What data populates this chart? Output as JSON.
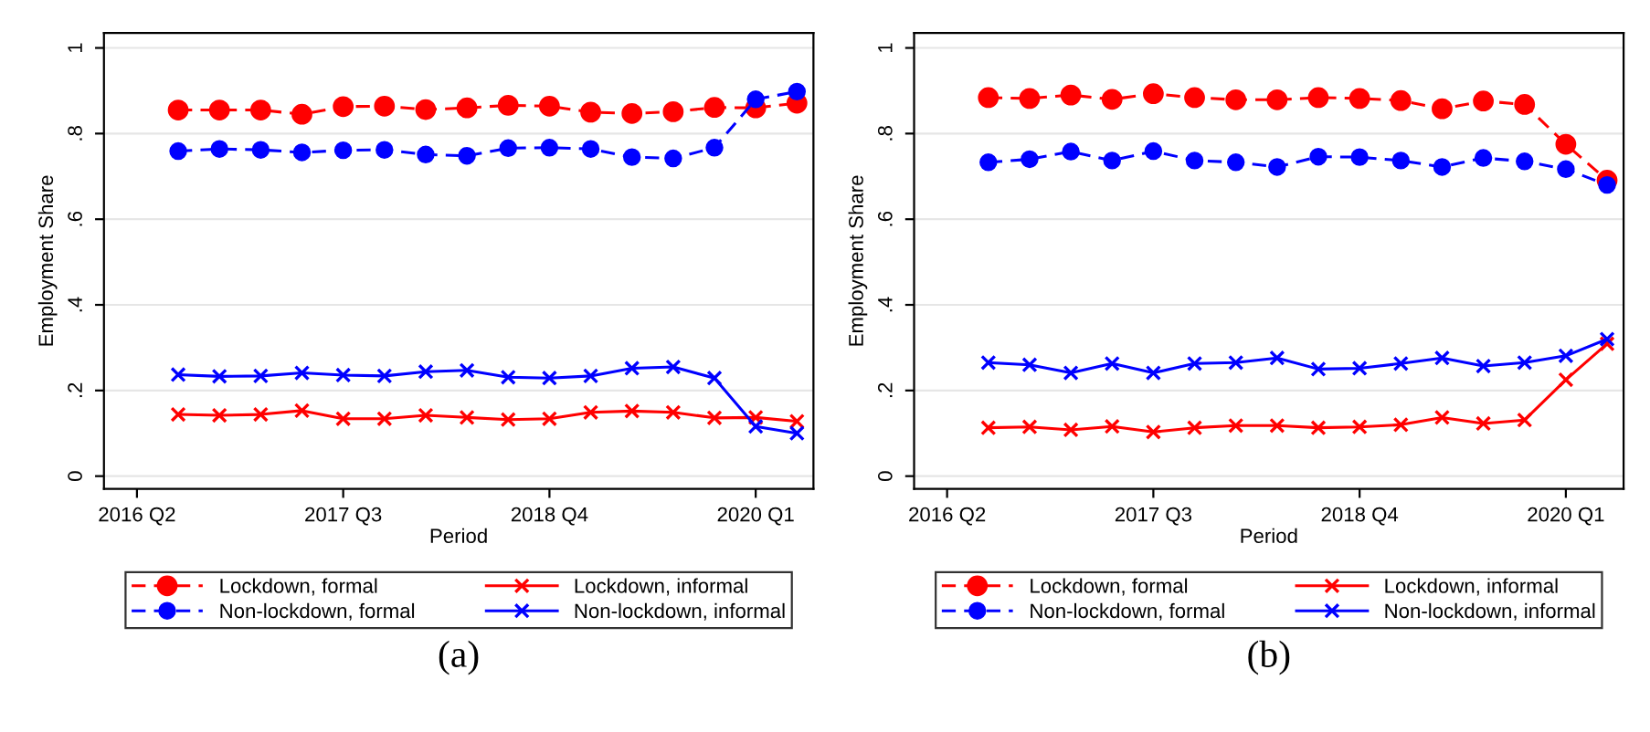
{
  "chart_data": [
    {
      "type": "line",
      "xlabel": "Period",
      "ylabel": "Employment Share",
      "annotations": [
        "(a)"
      ],
      "legend": "bottom",
      "grid": "y",
      "categories": [
        "2016 Q2",
        null,
        null,
        null,
        null,
        "2017 Q3",
        null,
        null,
        null,
        null,
        "2018 Q4",
        null,
        null,
        null,
        null,
        "2020 Q1",
        null
      ],
      "ylim": [
        -0.03,
        1.035
      ],
      "yticks": [
        0,
        {
          "value": 0.2,
          "label": ".2"
        },
        {
          "value": 0.4,
          "label": ".4"
        },
        {
          "value": 0.6,
          "label": ".6"
        },
        {
          "value": 0.8,
          "label": ".8"
        },
        1
      ],
      "series": [
        {
          "name": "Lockdown, formal",
          "color": "#ff0000",
          "line_style": "dashed",
          "marker": "circle",
          "values": [
            null,
            0.855,
            0.855,
            0.855,
            0.845,
            0.863,
            0.864,
            0.856,
            0.86,
            0.866,
            0.864,
            0.85,
            0.847,
            0.851,
            0.861,
            0.86,
            0.871
          ]
        },
        {
          "name": "Non-lockdown, formal",
          "color": "#0000ff",
          "line_style": "dashed",
          "marker": "circle",
          "values": [
            null,
            0.759,
            0.764,
            0.762,
            0.756,
            0.761,
            0.762,
            0.751,
            0.748,
            0.766,
            0.767,
            0.764,
            0.745,
            0.742,
            0.767,
            0.88,
            0.898
          ]
        },
        {
          "name": "Lockdown, informal",
          "color": "#ff0000",
          "line_style": "solid",
          "marker": "cross",
          "values": [
            null,
            0.144,
            0.142,
            0.144,
            0.153,
            0.134,
            0.134,
            0.142,
            0.137,
            0.132,
            0.134,
            0.149,
            0.152,
            0.149,
            0.136,
            0.137,
            0.128
          ]
        },
        {
          "name": "Non-lockdown, informal",
          "color": "#0000ff",
          "line_style": "solid",
          "marker": "cross",
          "values": [
            null,
            0.237,
            0.233,
            0.234,
            0.241,
            0.236,
            0.234,
            0.244,
            0.247,
            0.231,
            0.229,
            0.234,
            0.252,
            0.255,
            0.229,
            0.116,
            0.1
          ]
        }
      ]
    },
    {
      "type": "line",
      "xlabel": "Period",
      "ylabel": "Employment Share",
      "annotations": [
        "(b)"
      ],
      "legend": "bottom",
      "grid": "y",
      "categories": [
        "2016 Q2",
        null,
        null,
        null,
        null,
        "2017 Q3",
        null,
        null,
        null,
        null,
        "2018 Q4",
        null,
        null,
        null,
        null,
        "2020 Q1",
        null
      ],
      "ylim": [
        -0.03,
        1.035
      ],
      "yticks": [
        0,
        {
          "value": 0.2,
          "label": ".2"
        },
        {
          "value": 0.4,
          "label": ".4"
        },
        {
          "value": 0.6,
          "label": ".6"
        },
        {
          "value": 0.8,
          "label": ".8"
        },
        1
      ],
      "series": [
        {
          "name": "Lockdown, formal",
          "color": "#ff0000",
          "line_style": "dashed",
          "marker": "circle",
          "values": [
            null,
            0.884,
            0.882,
            0.89,
            0.88,
            0.893,
            0.884,
            0.879,
            0.879,
            0.884,
            0.882,
            0.877,
            0.858,
            0.876,
            0.868,
            0.775,
            0.691
          ]
        },
        {
          "name": "Non-lockdown, formal",
          "color": "#0000ff",
          "line_style": "dashed",
          "marker": "circle",
          "values": [
            null,
            0.733,
            0.74,
            0.758,
            0.737,
            0.759,
            0.737,
            0.733,
            0.722,
            0.746,
            0.745,
            0.737,
            0.722,
            0.743,
            0.735,
            0.717,
            0.68
          ]
        },
        {
          "name": "Lockdown, informal",
          "color": "#ff0000",
          "line_style": "solid",
          "marker": "cross",
          "values": [
            null,
            0.113,
            0.115,
            0.108,
            0.116,
            0.103,
            0.113,
            0.118,
            0.118,
            0.113,
            0.115,
            0.12,
            0.137,
            0.123,
            0.131,
            0.225,
            0.309
          ]
        },
        {
          "name": "Non-lockdown, informal",
          "color": "#0000ff",
          "line_style": "solid",
          "marker": "cross",
          "values": [
            null,
            0.265,
            0.26,
            0.241,
            0.263,
            0.241,
            0.263,
            0.265,
            0.276,
            0.25,
            0.252,
            0.263,
            0.276,
            0.257,
            0.265,
            0.281,
            0.32
          ]
        }
      ]
    }
  ]
}
